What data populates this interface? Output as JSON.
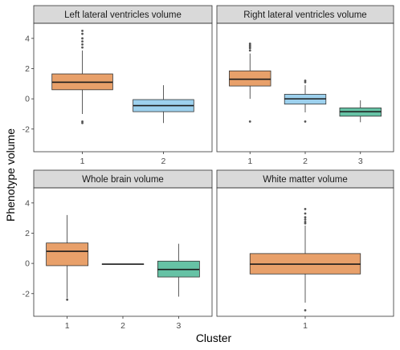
{
  "chart_data": {
    "type": "boxplot",
    "xlabel": "Cluster",
    "ylabel": "Phenotype volume",
    "ylim": [
      -3.5,
      5.0
    ],
    "yticks": [
      -2,
      0,
      2,
      4
    ],
    "grid": false,
    "legend": "none",
    "colors": {
      "1": "#E8A06A",
      "2": "#9DD1EE",
      "3": "#66C2A5"
    },
    "panels": [
      {
        "title": "Left lateral ventricles volume",
        "categories": [
          "1",
          "2"
        ],
        "boxes": [
          {
            "cluster": "1",
            "min": -1.0,
            "q1": 0.6,
            "median": 1.1,
            "q3": 1.65,
            "max": 3.2,
            "outliers": [
              3.4,
              3.6,
              3.8,
              4.0,
              4.3,
              4.5,
              -1.5,
              -1.6
            ]
          },
          {
            "cluster": "2",
            "min": -1.6,
            "q1": -0.85,
            "median": -0.45,
            "q3": -0.05,
            "max": 0.9,
            "outliers": []
          }
        ]
      },
      {
        "title": "Right lateral ventricles volume",
        "categories": [
          "1",
          "2",
          "3"
        ],
        "boxes": [
          {
            "cluster": "1",
            "min": 0.0,
            "q1": 0.85,
            "median": 1.3,
            "q3": 1.85,
            "max": 3.0,
            "outliers": [
              3.2,
              3.35,
              3.45,
              3.55,
              3.65,
              -1.5
            ]
          },
          {
            "cluster": "2",
            "min": -0.9,
            "q1": -0.35,
            "median": 0.0,
            "q3": 0.3,
            "max": 0.9,
            "outliers": [
              1.1,
              1.2,
              -1.5
            ]
          },
          {
            "cluster": "3",
            "min": -1.55,
            "q1": -1.15,
            "median": -0.85,
            "q3": -0.6,
            "max": -0.1,
            "outliers": []
          }
        ]
      },
      {
        "title": "Whole brain volume",
        "categories": [
          "1",
          "2",
          "3"
        ],
        "boxes": [
          {
            "cluster": "1",
            "min": -2.3,
            "q1": -0.15,
            "median": 0.8,
            "q3": 1.35,
            "max": 3.2,
            "outliers": [
              -2.4
            ]
          },
          {
            "cluster": "2",
            "min": -0.05,
            "q1": -0.05,
            "median": -0.05,
            "q3": -0.05,
            "max": -0.05,
            "outliers": []
          },
          {
            "cluster": "3",
            "min": -2.2,
            "q1": -0.9,
            "median": -0.4,
            "q3": 0.15,
            "max": 1.3,
            "outliers": []
          }
        ]
      },
      {
        "title": "White matter volume",
        "categories": [
          "1"
        ],
        "boxes": [
          {
            "cluster": "1",
            "min": -2.6,
            "q1": -0.7,
            "median": -0.05,
            "q3": 0.65,
            "max": 2.5,
            "outliers": [
              2.65,
              2.75,
              2.9,
              3.05,
              3.3,
              3.6,
              -3.1
            ]
          }
        ]
      }
    ]
  }
}
